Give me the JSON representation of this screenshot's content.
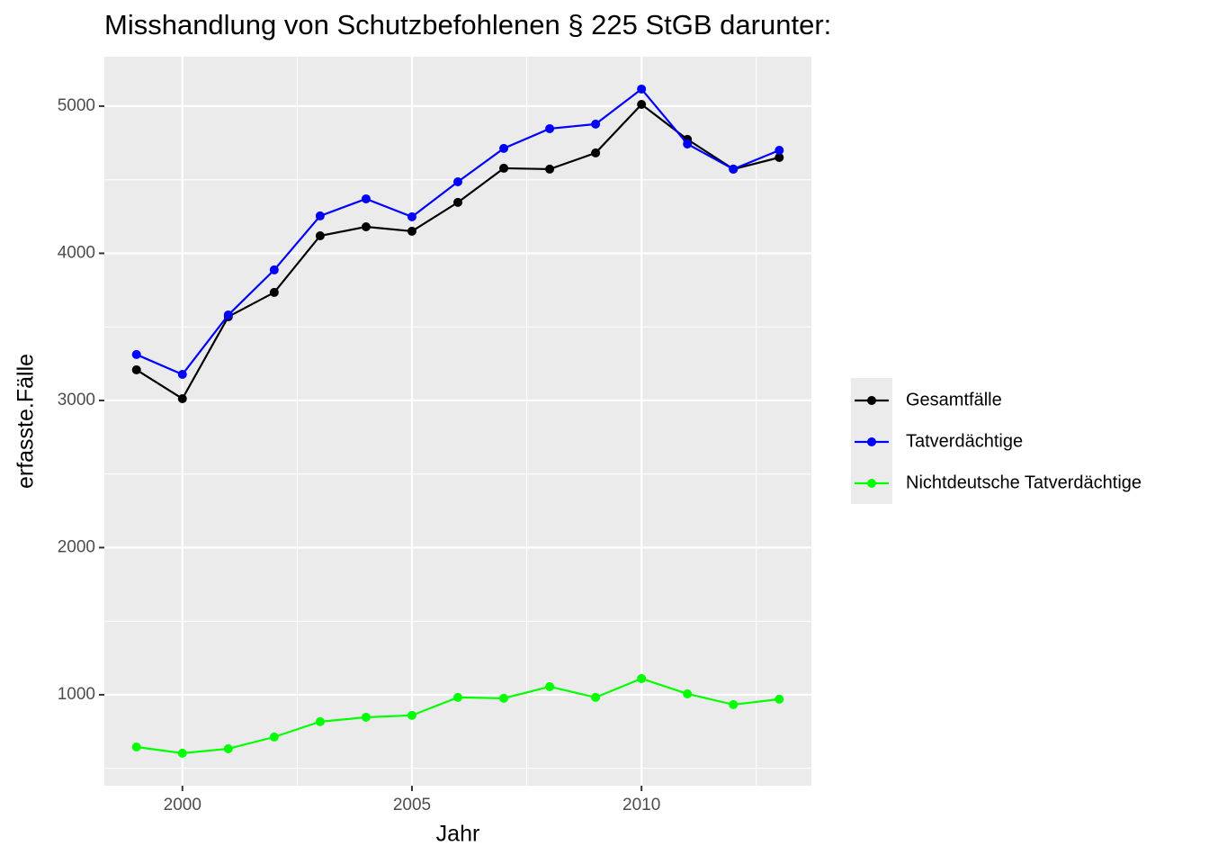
{
  "chart_data": {
    "type": "line",
    "title": "Misshandlung von Schutzbefohlenen § 225 StGB darunter:",
    "x_label": "Jahr",
    "y_label": "erfasste.Fälle",
    "x": [
      1999,
      2000,
      2001,
      2002,
      2003,
      2004,
      2005,
      2006,
      2007,
      2008,
      2009,
      2010,
      2011,
      2012,
      2013
    ],
    "series": [
      {
        "name": "Gesamtfälle",
        "color": "#000000",
        "values": [
          3208,
          3012,
          3569,
          3734,
          4119,
          4180,
          4150,
          4346,
          4578,
          4572,
          4682,
          5012,
          4774,
          4572,
          4651
        ]
      },
      {
        "name": "Tatverdächtige",
        "color": "#0000ff",
        "values": [
          3312,
          3177,
          3581,
          3887,
          4254,
          4370,
          4248,
          4486,
          4713,
          4847,
          4878,
          5116,
          4743,
          4572,
          4700
        ]
      },
      {
        "name": "Nichtdeutsche Tatverdächtige",
        "color": "#00ff00",
        "values": [
          645,
          603,
          633,
          713,
          817,
          847,
          860,
          982,
          976,
          1055,
          982,
          1110,
          1006,
          933,
          970
        ]
      }
    ],
    "xlim": [
      1998.3,
      2013.7
    ],
    "xticks": [
      2000,
      2005,
      2010
    ],
    "ylim": [
      382,
      5336
    ],
    "yticks": [
      1000,
      2000,
      3000,
      4000,
      5000
    ],
    "grid": true,
    "legend": "right"
  }
}
